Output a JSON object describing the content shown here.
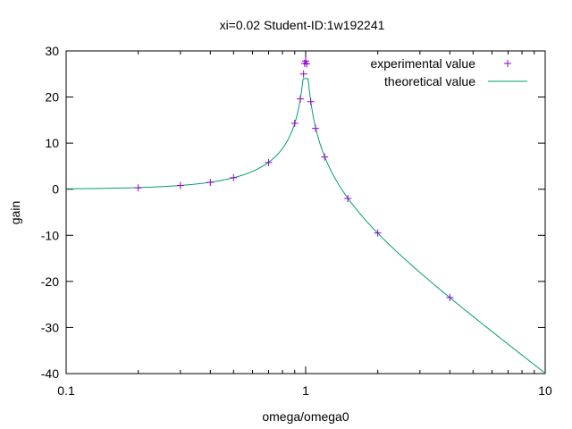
{
  "chart_data": {
    "type": "scatter",
    "title": "xi=0.02 Student-ID:1w192241",
    "xlabel": "omega/omega0",
    "ylabel": "gain",
    "xscale": "log",
    "xlim": [
      0.1,
      10
    ],
    "ylim": [
      -40,
      30
    ],
    "xticks": [
      0.1,
      1,
      10
    ],
    "xtick_labels": [
      "0.1",
      "1",
      "10"
    ],
    "yticks": [
      30,
      20,
      10,
      0,
      -10,
      -20,
      -30,
      -40
    ],
    "ytick_labels": [
      "30",
      "20",
      "10",
      "0",
      "-10",
      "-20",
      "-30",
      "-40"
    ],
    "grid": false,
    "legend_position": "top-right",
    "series": [
      {
        "name": "experimental value",
        "kind": "points",
        "marker": "plus",
        "color": "#9400d3",
        "x": [
          0.2,
          0.3,
          0.4,
          0.5,
          0.7,
          0.9,
          0.95,
          0.98,
          0.99,
          1.0,
          1.01,
          1.05,
          1.1,
          1.2,
          1.5,
          2.0,
          4.0
        ],
        "y": [
          0.3,
          0.8,
          1.5,
          2.5,
          5.8,
          14.3,
          19.6,
          25.0,
          27.3,
          27.8,
          27.2,
          19.0,
          13.2,
          7.0,
          -2.0,
          -9.5,
          -23.5
        ]
      },
      {
        "name": "theoretical value",
        "kind": "line",
        "color": "#009e73",
        "peak_gain": 24.0,
        "damping_ratio": 0.02
      }
    ]
  }
}
